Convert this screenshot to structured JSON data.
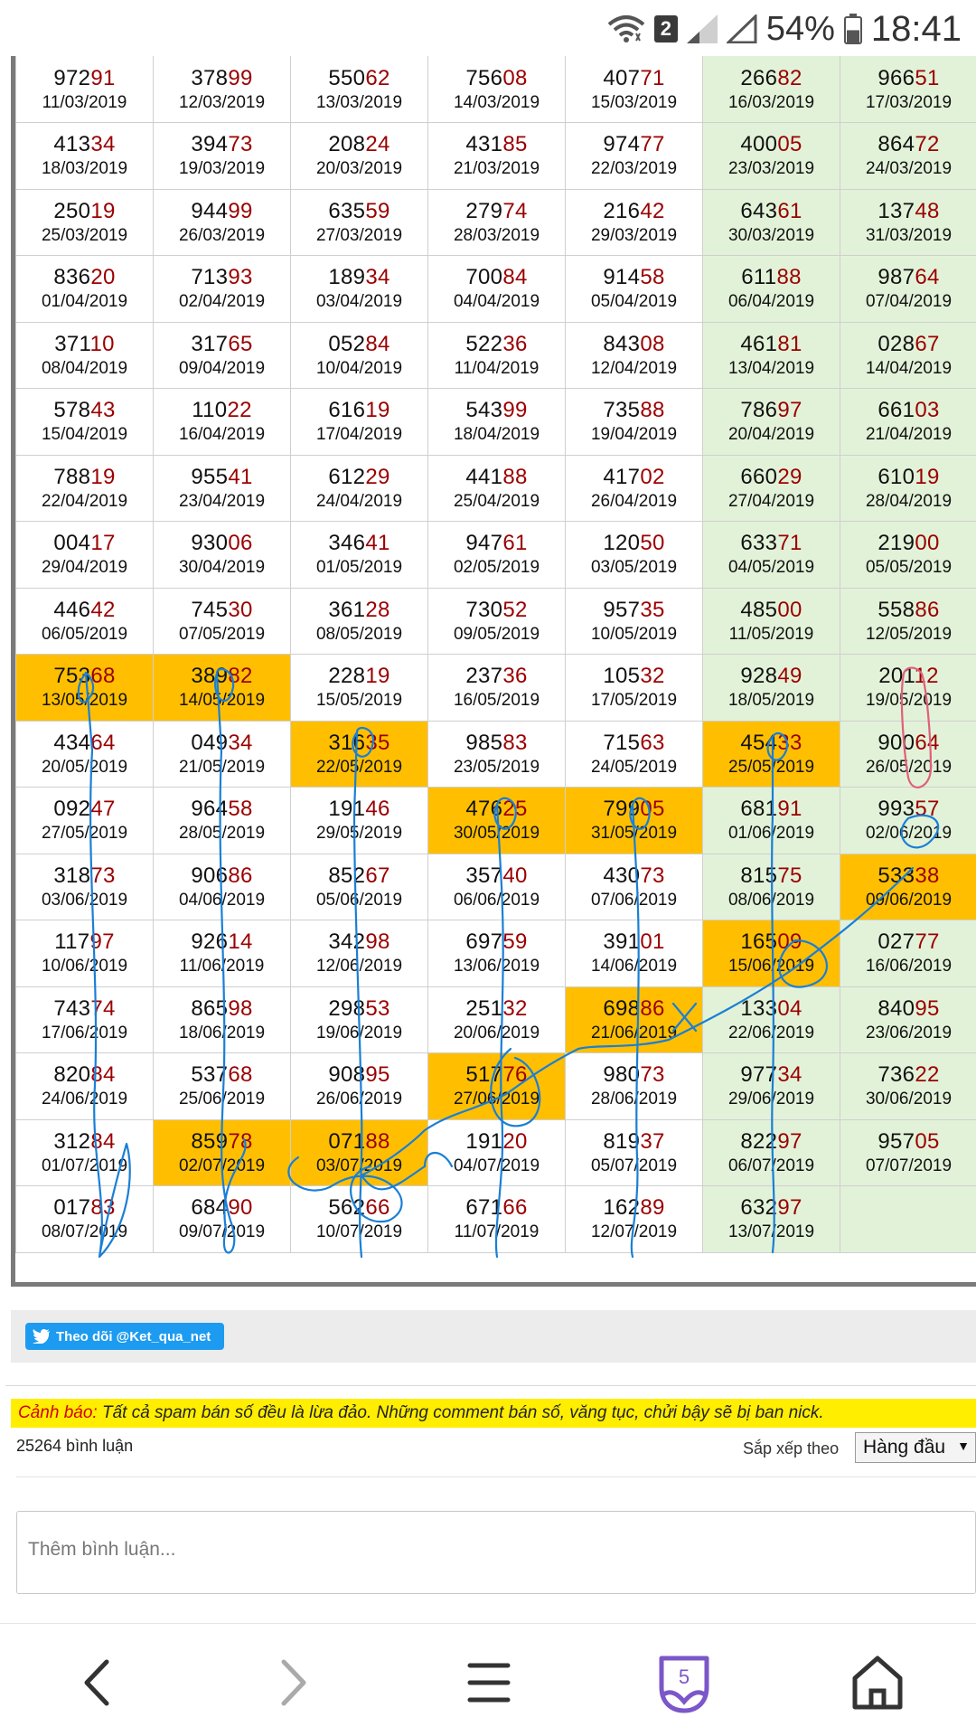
{
  "status_bar": {
    "sim_slot": "2",
    "battery_percent": "54%",
    "battery_level": 0.54,
    "time": "18:41",
    "icons": [
      "wifi-icon",
      "signal-icon",
      "battery-icon"
    ]
  },
  "results": {
    "weekend_columns": [
      5,
      6
    ],
    "rows": [
      [
        {
          "n": "97291",
          "d": "11/03/2019"
        },
        {
          "n": "37899",
          "d": "12/03/2019"
        },
        {
          "n": "55062",
          "d": "13/03/2019"
        },
        {
          "n": "75608",
          "d": "14/03/2019"
        },
        {
          "n": "40771",
          "d": "15/03/2019"
        },
        {
          "n": "26682",
          "d": "16/03/2019"
        },
        {
          "n": "96651",
          "d": "17/03/2019"
        }
      ],
      [
        {
          "n": "41334",
          "d": "18/03/2019"
        },
        {
          "n": "39473",
          "d": "19/03/2019"
        },
        {
          "n": "20824",
          "d": "20/03/2019"
        },
        {
          "n": "43185",
          "d": "21/03/2019"
        },
        {
          "n": "97477",
          "d": "22/03/2019"
        },
        {
          "n": "40005",
          "d": "23/03/2019"
        },
        {
          "n": "86472",
          "d": "24/03/2019"
        }
      ],
      [
        {
          "n": "25019",
          "d": "25/03/2019"
        },
        {
          "n": "94499",
          "d": "26/03/2019"
        },
        {
          "n": "63559",
          "d": "27/03/2019"
        },
        {
          "n": "27974",
          "d": "28/03/2019"
        },
        {
          "n": "21642",
          "d": "29/03/2019"
        },
        {
          "n": "64361",
          "d": "30/03/2019"
        },
        {
          "n": "13748",
          "d": "31/03/2019"
        }
      ],
      [
        {
          "n": "83620",
          "d": "01/04/2019"
        },
        {
          "n": "71393",
          "d": "02/04/2019"
        },
        {
          "n": "18934",
          "d": "03/04/2019"
        },
        {
          "n": "70084",
          "d": "04/04/2019"
        },
        {
          "n": "91458",
          "d": "05/04/2019"
        },
        {
          "n": "61188",
          "d": "06/04/2019"
        },
        {
          "n": "98764",
          "d": "07/04/2019"
        }
      ],
      [
        {
          "n": "37110",
          "d": "08/04/2019"
        },
        {
          "n": "31765",
          "d": "09/04/2019"
        },
        {
          "n": "05284",
          "d": "10/04/2019"
        },
        {
          "n": "52236",
          "d": "11/04/2019"
        },
        {
          "n": "84308",
          "d": "12/04/2019"
        },
        {
          "n": "46181",
          "d": "13/04/2019"
        },
        {
          "n": "02867",
          "d": "14/04/2019"
        }
      ],
      [
        {
          "n": "57843",
          "d": "15/04/2019"
        },
        {
          "n": "11022",
          "d": "16/04/2019"
        },
        {
          "n": "61619",
          "d": "17/04/2019"
        },
        {
          "n": "54399",
          "d": "18/04/2019"
        },
        {
          "n": "73588",
          "d": "19/04/2019"
        },
        {
          "n": "78697",
          "d": "20/04/2019"
        },
        {
          "n": "66103",
          "d": "21/04/2019"
        }
      ],
      [
        {
          "n": "78819",
          "d": "22/04/2019"
        },
        {
          "n": "95541",
          "d": "23/04/2019"
        },
        {
          "n": "61229",
          "d": "24/04/2019"
        },
        {
          "n": "44188",
          "d": "25/04/2019"
        },
        {
          "n": "41702",
          "d": "26/04/2019"
        },
        {
          "n": "66029",
          "d": "27/04/2019"
        },
        {
          "n": "61019",
          "d": "28/04/2019"
        }
      ],
      [
        {
          "n": "00417",
          "d": "29/04/2019"
        },
        {
          "n": "93006",
          "d": "30/04/2019"
        },
        {
          "n": "34641",
          "d": "01/05/2019"
        },
        {
          "n": "94761",
          "d": "02/05/2019"
        },
        {
          "n": "12050",
          "d": "03/05/2019"
        },
        {
          "n": "63371",
          "d": "04/05/2019"
        },
        {
          "n": "21900",
          "d": "05/05/2019"
        }
      ],
      [
        {
          "n": "44642",
          "d": "06/05/2019"
        },
        {
          "n": "74530",
          "d": "07/05/2019"
        },
        {
          "n": "36128",
          "d": "08/05/2019"
        },
        {
          "n": "73052",
          "d": "09/05/2019"
        },
        {
          "n": "95735",
          "d": "10/05/2019"
        },
        {
          "n": "48500",
          "d": "11/05/2019"
        },
        {
          "n": "55886",
          "d": "12/05/2019"
        }
      ],
      [
        {
          "n": "75368",
          "d": "13/05/2019",
          "hl": true
        },
        {
          "n": "38982",
          "d": "14/05/2019",
          "hl": true
        },
        {
          "n": "22819",
          "d": "15/05/2019"
        },
        {
          "n": "23736",
          "d": "16/05/2019"
        },
        {
          "n": "10532",
          "d": "17/05/2019"
        },
        {
          "n": "92849",
          "d": "18/05/2019"
        },
        {
          "n": "20112",
          "d": "19/05/2019"
        }
      ],
      [
        {
          "n": "43464",
          "d": "20/05/2019"
        },
        {
          "n": "04934",
          "d": "21/05/2019"
        },
        {
          "n": "31635",
          "d": "22/05/2019",
          "hl": true
        },
        {
          "n": "98583",
          "d": "23/05/2019"
        },
        {
          "n": "71563",
          "d": "24/05/2019"
        },
        {
          "n": "45433",
          "d": "25/05/2019",
          "hl": true
        },
        {
          "n": "90064",
          "d": "26/05/2019"
        }
      ],
      [
        {
          "n": "09247",
          "d": "27/05/2019"
        },
        {
          "n": "96458",
          "d": "28/05/2019"
        },
        {
          "n": "19146",
          "d": "29/05/2019"
        },
        {
          "n": "47625",
          "d": "30/05/2019",
          "hl": true
        },
        {
          "n": "79905",
          "d": "31/05/2019",
          "hl": true
        },
        {
          "n": "68191",
          "d": "01/06/2019"
        },
        {
          "n": "99357",
          "d": "02/06/2019"
        }
      ],
      [
        {
          "n": "31873",
          "d": "03/06/2019"
        },
        {
          "n": "90686",
          "d": "04/06/2019"
        },
        {
          "n": "85267",
          "d": "05/06/2019"
        },
        {
          "n": "35740",
          "d": "06/06/2019"
        },
        {
          "n": "43073",
          "d": "07/06/2019"
        },
        {
          "n": "81575",
          "d": "08/06/2019"
        },
        {
          "n": "53338",
          "d": "09/06/2019",
          "hl": true
        }
      ],
      [
        {
          "n": "11797",
          "d": "10/06/2019"
        },
        {
          "n": "92614",
          "d": "11/06/2019"
        },
        {
          "n": "34298",
          "d": "12/06/2019"
        },
        {
          "n": "69759",
          "d": "13/06/2019"
        },
        {
          "n": "39101",
          "d": "14/06/2019"
        },
        {
          "n": "16509",
          "d": "15/06/2019",
          "hl": true
        },
        {
          "n": "02777",
          "d": "16/06/2019"
        }
      ],
      [
        {
          "n": "74374",
          "d": "17/06/2019"
        },
        {
          "n": "86598",
          "d": "18/06/2019"
        },
        {
          "n": "29853",
          "d": "19/06/2019"
        },
        {
          "n": "25132",
          "d": "20/06/2019"
        },
        {
          "n": "69886",
          "d": "21/06/2019",
          "hl": true
        },
        {
          "n": "13304",
          "d": "22/06/2019"
        },
        {
          "n": "84095",
          "d": "23/06/2019"
        }
      ],
      [
        {
          "n": "82084",
          "d": "24/06/2019"
        },
        {
          "n": "53768",
          "d": "25/06/2019"
        },
        {
          "n": "90895",
          "d": "26/06/2019"
        },
        {
          "n": "51776",
          "d": "27/06/2019",
          "hl": true
        },
        {
          "n": "98073",
          "d": "28/06/2019"
        },
        {
          "n": "97734",
          "d": "29/06/2019"
        },
        {
          "n": "73622",
          "d": "30/06/2019"
        }
      ],
      [
        {
          "n": "31284",
          "d": "01/07/2019"
        },
        {
          "n": "85978",
          "d": "02/07/2019",
          "hl": true
        },
        {
          "n": "07188",
          "d": "03/07/2019",
          "hl": true
        },
        {
          "n": "19120",
          "d": "04/07/2019"
        },
        {
          "n": "81937",
          "d": "05/07/2019"
        },
        {
          "n": "82297",
          "d": "06/07/2019"
        },
        {
          "n": "95705",
          "d": "07/07/2019"
        }
      ],
      [
        {
          "n": "01783",
          "d": "08/07/2019"
        },
        {
          "n": "68490",
          "d": "09/07/2019"
        },
        {
          "n": "56266",
          "d": "10/07/2019"
        },
        {
          "n": "67166",
          "d": "11/07/2019"
        },
        {
          "n": "16289",
          "d": "12/07/2019"
        },
        {
          "n": "63297",
          "d": "13/07/2019"
        },
        {
          "n": "",
          "d": ""
        }
      ]
    ]
  },
  "follow_button": {
    "label": "Theo dõi @Ket_qua_net",
    "icon": "twitter-bird-icon"
  },
  "warning": {
    "lead": "Cảnh báo:",
    "message": " Tất cả spam bán số đều là lừa đảo. Những comment bán số, văng tục, chửi bậy sẽ bị ban nick."
  },
  "comments": {
    "count": "25264 bình luận",
    "sort_label": "Sắp xếp theo",
    "sort_value": "Hàng đầu",
    "input_placeholder": "Thêm bình luận..."
  },
  "navbar": {
    "tabs_count": "5",
    "items": [
      "back-icon",
      "forward-icon",
      "menu-icon",
      "tabs-icon",
      "home-icon"
    ]
  },
  "colors": {
    "highlight": "#ffbf00",
    "weekend": "#e2f2d8",
    "tail_digits": "#9b0000",
    "warning_bg": "#ffee00",
    "twitter": "#1d9bf0",
    "pen_blue": "#1a7fd6",
    "pen_pink": "#e0607a",
    "tabs_purple": "#7b57c9"
  }
}
